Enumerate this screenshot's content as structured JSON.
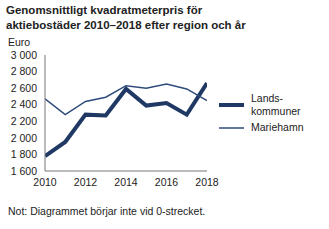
{
  "chart_data": {
    "type": "line",
    "title": "Genomsnittligt kvadratmeterpris för\naktiebostäder 2010–2018 efter region och år",
    "ylabel": "Euro",
    "note": "Not: Diagrammet börjar inte vid 0-strecket.",
    "x": [
      2010,
      2011,
      2012,
      2013,
      2014,
      2015,
      2016,
      2017,
      2018
    ],
    "xlim": [
      2010,
      2018
    ],
    "xticks": [
      2010,
      2012,
      2014,
      2016,
      2018
    ],
    "ylim": [
      1600,
      3000
    ],
    "yticks": [
      {
        "value": 1600,
        "label": "1 600"
      },
      {
        "value": 1800,
        "label": "1 800"
      },
      {
        "value": 2000,
        "label": "2 000"
      },
      {
        "value": 2200,
        "label": "2 200"
      },
      {
        "value": 2400,
        "label": "2 400"
      },
      {
        "value": 2600,
        "label": "2 600"
      },
      {
        "value": 2800,
        "label": "2 800"
      },
      {
        "value": 3000,
        "label": "3 000"
      }
    ],
    "grid": false,
    "legend": "right",
    "marker": "none",
    "series": [
      {
        "name": "Lands-kommuner",
        "color": "#1f3864",
        "values": [
          1780,
          1950,
          2280,
          2270,
          2590,
          2390,
          2420,
          2280,
          2660
        ]
      },
      {
        "name": "Mariehamn",
        "color": "#2f4b7c",
        "values": [
          2470,
          2280,
          2440,
          2490,
          2630,
          2600,
          2650,
          2590,
          2450
        ]
      }
    ]
  }
}
